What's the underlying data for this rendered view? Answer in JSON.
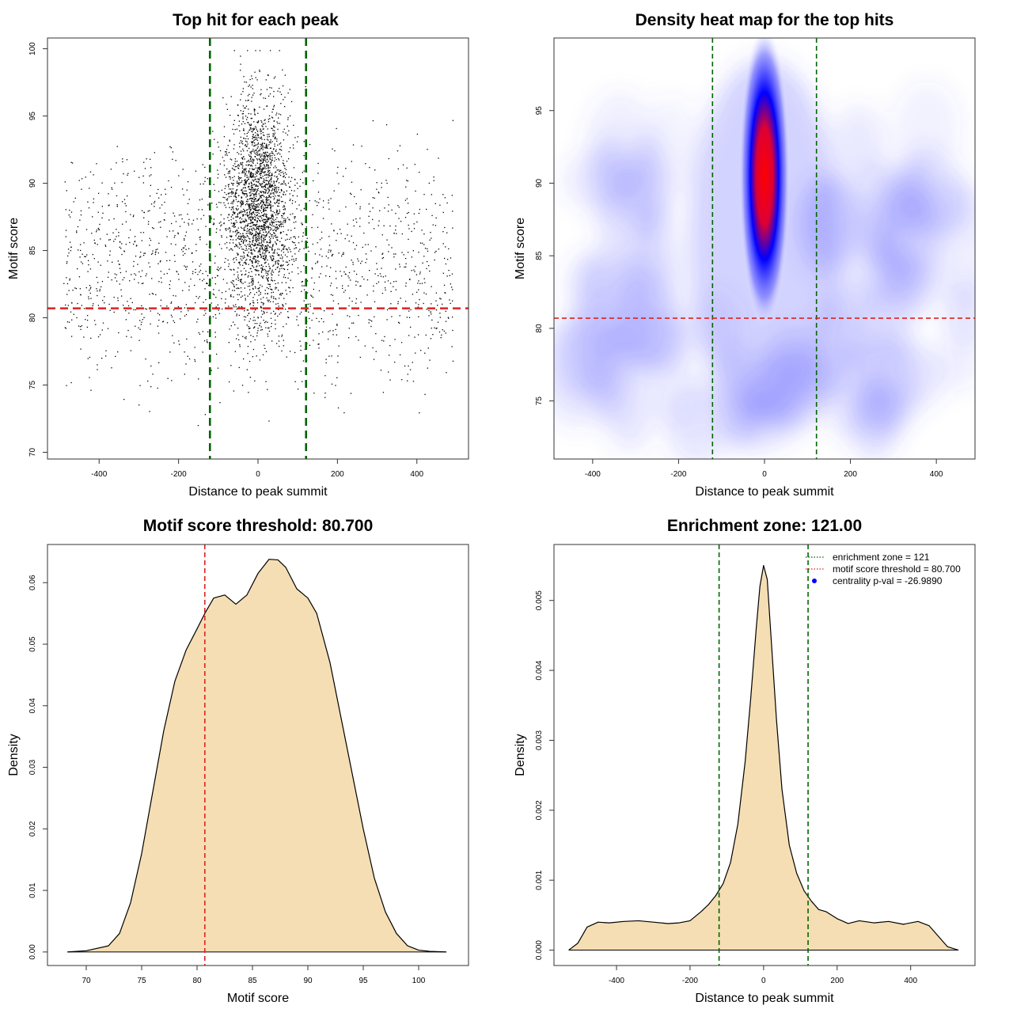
{
  "chart_data": [
    {
      "panel": "top-left",
      "type": "scatter",
      "title": "Top hit for each peak",
      "xlabel": "Distance to peak summit",
      "ylabel": "Motif score",
      "xlim": [
        -530,
        530
      ],
      "ylim": [
        69.5,
        100.8
      ],
      "xticks": [
        -400,
        -200,
        0,
        200,
        400
      ],
      "yticks": [
        70,
        75,
        80,
        85,
        90,
        95,
        100
      ],
      "background": {
        "x_range": [
          -490,
          490
        ],
        "y_range": [
          71,
          96.5
        ],
        "n_points": 1500
      },
      "central_cluster": {
        "x_center": 0,
        "x_sd": 40,
        "y_center": 88.5,
        "y_sd": 4,
        "y_range": [
          73,
          99.9
        ],
        "n_points": 2300
      },
      "vlines": [
        -121,
        121
      ],
      "hline": 80.7,
      "point_color": "#000000",
      "vline_color": "#006400",
      "hline_color": "#dd2222"
    },
    {
      "panel": "top-right",
      "type": "heatmap",
      "title": "Density heat map for the top hits",
      "xlabel": "Distance to peak summit",
      "ylabel": "Motif score",
      "xlim": [
        -490,
        490
      ],
      "ylim": [
        71,
        100
      ],
      "xticks": [
        -400,
        -200,
        0,
        200,
        400
      ],
      "yticks": [
        75,
        80,
        85,
        90,
        95
      ],
      "hotspot": {
        "x_center": 0,
        "y_center": 90.5,
        "x_sd": 25,
        "y_sd": 4.2
      },
      "vlines": [
        -121,
        121
      ],
      "hline": 80.7,
      "color_scale": [
        "#ffffff",
        "#0000ff",
        "#ff0000"
      ],
      "vline_color": "#006400",
      "hline_color": "#dd2222"
    },
    {
      "panel": "bottom-left",
      "type": "area",
      "title": "Motif score threshold: 80.700",
      "xlabel": "Motif score",
      "ylabel": "Density",
      "xlim": [
        66.5,
        104.5
      ],
      "ylim": [
        -0.0022,
        0.0662
      ],
      "xticks": [
        70,
        75,
        80,
        85,
        90,
        95,
        100
      ],
      "yticks": [
        0.0,
        0.01,
        0.02,
        0.03,
        0.04,
        0.05,
        0.06
      ],
      "ytick_labels": [
        "0.00",
        "0.01",
        "0.02",
        "0.03",
        "0.04",
        "0.05",
        "0.06"
      ],
      "x": [
        68.3,
        70,
        72,
        73,
        74,
        75,
        76,
        77,
        78,
        79,
        80,
        80.7,
        81.5,
        82.5,
        83.5,
        84.5,
        85.5,
        86.5,
        87.3,
        88,
        89,
        90,
        90.8,
        92,
        93,
        94,
        95,
        96,
        97,
        98,
        99,
        100,
        101,
        102.5
      ],
      "y": [
        0.0,
        0.0002,
        0.001,
        0.003,
        0.008,
        0.016,
        0.026,
        0.036,
        0.044,
        0.049,
        0.0525,
        0.055,
        0.0575,
        0.058,
        0.0565,
        0.058,
        0.0615,
        0.0638,
        0.0637,
        0.0625,
        0.059,
        0.0575,
        0.055,
        0.047,
        0.038,
        0.029,
        0.02,
        0.012,
        0.0065,
        0.003,
        0.001,
        0.0003,
        0.0001,
        0.0
      ],
      "vline": 80.7,
      "fill_color": "#f5deb3",
      "line_color": "#000000",
      "vline_color": "#dd2222"
    },
    {
      "panel": "bottom-right",
      "type": "area",
      "title": "Enrichment zone: 121.00",
      "xlabel": "Distance to peak summit",
      "ylabel": "Density",
      "xlim": [
        -570,
        575
      ],
      "ylim": [
        -0.00022,
        0.0058
      ],
      "xticks": [
        -400,
        -200,
        0,
        200,
        400
      ],
      "yticks": [
        0.0,
        0.001,
        0.002,
        0.003,
        0.004,
        0.005
      ],
      "ytick_labels": [
        "0.000",
        "0.001",
        "0.002",
        "0.003",
        "0.004",
        "0.005"
      ],
      "x": [
        -530,
        -505,
        -480,
        -450,
        -420,
        -380,
        -340,
        -300,
        -260,
        -230,
        -200,
        -170,
        -150,
        -130,
        -110,
        -90,
        -70,
        -50,
        -35,
        -20,
        -10,
        0,
        10,
        20,
        35,
        50,
        70,
        90,
        110,
        130,
        150,
        170,
        200,
        230,
        260,
        300,
        340,
        380,
        420,
        450,
        475,
        500,
        530
      ],
      "y": [
        0.0,
        0.0001,
        0.00033,
        0.0004,
        0.00039,
        0.00041,
        0.00042,
        0.0004,
        0.00038,
        0.00039,
        0.00042,
        0.00055,
        0.00065,
        0.00078,
        0.00095,
        0.00125,
        0.0018,
        0.0027,
        0.0036,
        0.0046,
        0.0052,
        0.0055,
        0.0053,
        0.0045,
        0.0033,
        0.0023,
        0.0015,
        0.0011,
        0.00085,
        0.0007,
        0.00058,
        0.00055,
        0.00045,
        0.00038,
        0.00042,
        0.00039,
        0.00041,
        0.00037,
        0.00041,
        0.00035,
        0.0002,
        5e-05,
        0.0
      ],
      "vlines": [
        -121,
        121
      ],
      "fill_color": "#f5deb3",
      "line_color": "#000000",
      "vline_color": "#006400",
      "legend": {
        "position": "top-right",
        "entries": [
          {
            "label": "enrichment zone = 121",
            "style": "dotted-line",
            "color": "#006400"
          },
          {
            "label": "motif score threshold = 80.700",
            "style": "dotted-line",
            "color": "#dd2222"
          },
          {
            "label": "centrality p-val = -26.9890",
            "style": "point",
            "color": "#0000ff"
          }
        ]
      }
    }
  ]
}
